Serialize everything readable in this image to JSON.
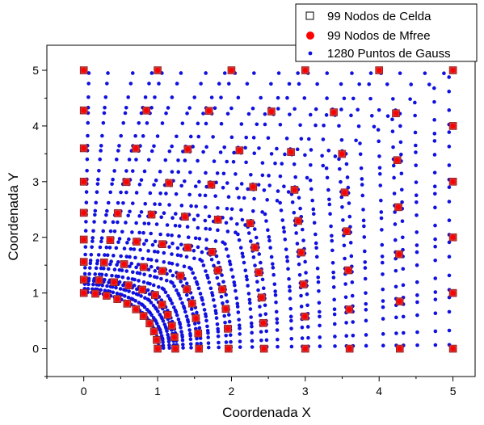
{
  "chart_data": {
    "type": "scatter",
    "xlabel": "Coordenada X",
    "ylabel": "Coordenada Y",
    "xlim": [
      -0.5,
      5.3
    ],
    "ylim": [
      -0.5,
      5.45
    ],
    "xticks": [
      "0",
      "1",
      "2",
      "3",
      "4",
      "5"
    ],
    "yticks": [
      "0",
      "1",
      "2",
      "3",
      "4",
      "5"
    ],
    "grid": false,
    "legend_position": "top-right",
    "colors": {
      "cell_node": "#cc3333",
      "mfree_node": "#ff0000",
      "gauss_point": "#1010e0",
      "axis": "#000000"
    },
    "legend": [
      {
        "label": "99 Nodos de Celda",
        "marker": "open-square"
      },
      {
        "label": "99 Nodos de Mfree",
        "marker": "red-circle"
      },
      {
        "label": "1280 Puntos de Gauss",
        "marker": "blue-dot"
      }
    ],
    "series": [
      {
        "name": "99 Nodos de Celda",
        "marker": "square",
        "description": "nodes along 11 radial lines x 9 layers from unit quarter circle to square boundary",
        "nodes_per_line": 9,
        "lines": 11,
        "radial_grading": [
          0,
          0.06,
          0.14,
          0.24,
          0.36,
          0.5,
          0.65,
          0.82,
          1
        ]
      },
      {
        "name": "99 Nodos de Mfree",
        "marker": "circle",
        "description": "same locations as cell nodes"
      },
      {
        "name": "1280 Puntos de Gauss",
        "marker": "dot",
        "description": "4x4 Gauss points per cell, 80 cells",
        "gauss_per_cell": 4
      }
    ]
  }
}
